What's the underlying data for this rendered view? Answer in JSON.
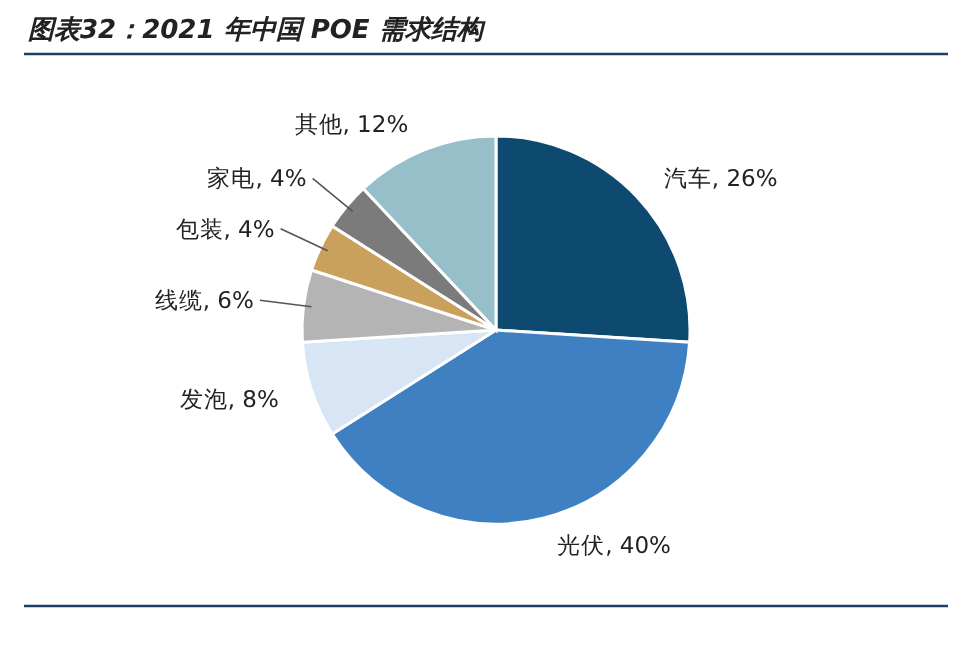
{
  "chart_data": {
    "type": "pie",
    "title": "图表32：2021 年中国 POE 需求结构",
    "categories": [
      "汽车",
      "光伏",
      "发泡",
      "线缆",
      "包装",
      "家电",
      "其他"
    ],
    "values": [
      26,
      40,
      8,
      6,
      4,
      4,
      12
    ],
    "value_labels": [
      ", 26%",
      ", 40%",
      ", 8%",
      ", 6%",
      ", 4%",
      ", 4%",
      ", 12%"
    ],
    "colors": [
      "#0e4a70",
      "#3f80c2",
      "#d7e5f4",
      "#b4b4b4",
      "#c9a15c",
      "#7b7b7b",
      "#96bfc9"
    ],
    "legend": false
  }
}
